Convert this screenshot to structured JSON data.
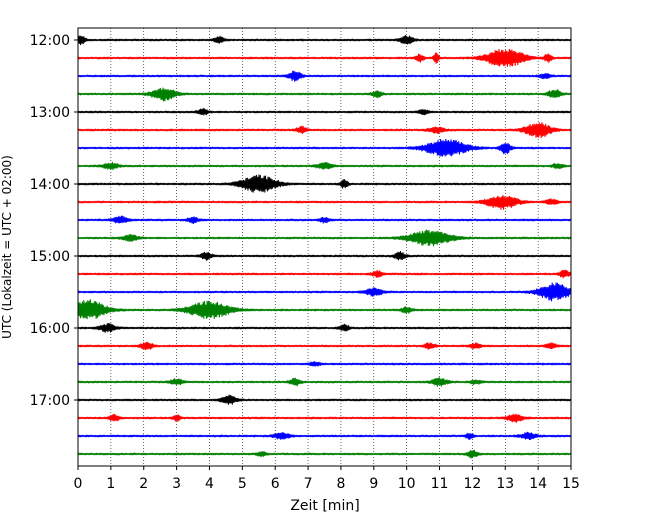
{
  "chart_data": {
    "type": "line",
    "title": "",
    "xlabel": "Zeit  [min]",
    "ylabel": "UTC (Lokalzeit = UTC + 02:00)",
    "xlim": [
      0,
      15
    ],
    "x_ticks": [
      "0",
      "1",
      "2",
      "3",
      "4",
      "5",
      "6",
      "7",
      "8",
      "9",
      "10",
      "11",
      "12",
      "13",
      "14",
      "15"
    ],
    "y_tick_labels": [
      "12:00",
      "13:00",
      "14:00",
      "15:00",
      "16:00",
      "17:00"
    ],
    "grid": "vertical dotted at each minute",
    "trace_count": 24,
    "traces_per_hour": 4,
    "trace_start_utc": "12:00",
    "trace_interval_min": 15,
    "colors_cycle": [
      "#000000",
      "#ff0000",
      "#0000ff",
      "#008000"
    ],
    "events": [
      {
        "trace": 0,
        "t": 0.1,
        "amp": 1.0,
        "w": 0.15
      },
      {
        "trace": 0,
        "t": 4.3,
        "amp": 0.7,
        "w": 0.2
      },
      {
        "trace": 0,
        "t": 10.0,
        "amp": 1.0,
        "w": 0.25
      },
      {
        "trace": 1,
        "t": 10.4,
        "amp": 0.8,
        "w": 0.15
      },
      {
        "trace": 1,
        "t": 10.9,
        "amp": 1.2,
        "w": 0.1
      },
      {
        "trace": 1,
        "t": 13.0,
        "amp": 2.3,
        "w": 0.7
      },
      {
        "trace": 1,
        "t": 14.3,
        "amp": 0.9,
        "w": 0.15
      },
      {
        "trace": 2,
        "t": 6.6,
        "amp": 1.1,
        "w": 0.25
      },
      {
        "trace": 2,
        "t": 14.2,
        "amp": 0.6,
        "w": 0.2
      },
      {
        "trace": 3,
        "t": 2.6,
        "amp": 1.5,
        "w": 0.45
      },
      {
        "trace": 3,
        "t": 9.1,
        "amp": 0.7,
        "w": 0.2
      },
      {
        "trace": 3,
        "t": 14.5,
        "amp": 1.0,
        "w": 0.25
      },
      {
        "trace": 4,
        "t": 3.8,
        "amp": 0.7,
        "w": 0.2
      },
      {
        "trace": 4,
        "t": 10.5,
        "amp": 0.6,
        "w": 0.2
      },
      {
        "trace": 5,
        "t": 6.8,
        "amp": 0.8,
        "w": 0.2
      },
      {
        "trace": 5,
        "t": 10.9,
        "amp": 0.7,
        "w": 0.3
      },
      {
        "trace": 5,
        "t": 14.0,
        "amp": 1.8,
        "w": 0.5
      },
      {
        "trace": 6,
        "t": 11.2,
        "amp": 2.0,
        "w": 0.8
      },
      {
        "trace": 6,
        "t": 13.0,
        "amp": 1.4,
        "w": 0.2
      },
      {
        "trace": 7,
        "t": 1.0,
        "amp": 0.7,
        "w": 0.3
      },
      {
        "trace": 7,
        "t": 7.5,
        "amp": 0.7,
        "w": 0.3
      },
      {
        "trace": 7,
        "t": 14.6,
        "amp": 0.6,
        "w": 0.2
      },
      {
        "trace": 8,
        "t": 5.5,
        "amp": 2.0,
        "w": 0.7
      },
      {
        "trace": 8,
        "t": 8.1,
        "amp": 0.9,
        "w": 0.15
      },
      {
        "trace": 9,
        "t": 12.9,
        "amp": 1.6,
        "w": 0.6
      },
      {
        "trace": 9,
        "t": 14.4,
        "amp": 0.6,
        "w": 0.25
      },
      {
        "trace": 10,
        "t": 1.3,
        "amp": 0.8,
        "w": 0.3
      },
      {
        "trace": 10,
        "t": 3.5,
        "amp": 0.7,
        "w": 0.2
      },
      {
        "trace": 10,
        "t": 7.5,
        "amp": 0.6,
        "w": 0.2
      },
      {
        "trace": 11,
        "t": 1.6,
        "amp": 0.7,
        "w": 0.3
      },
      {
        "trace": 11,
        "t": 10.7,
        "amp": 1.8,
        "w": 0.8
      },
      {
        "trace": 12,
        "t": 3.9,
        "amp": 0.9,
        "w": 0.2
      },
      {
        "trace": 12,
        "t": 9.8,
        "amp": 0.9,
        "w": 0.2
      },
      {
        "trace": 13,
        "t": 9.1,
        "amp": 0.7,
        "w": 0.2
      },
      {
        "trace": 13,
        "t": 14.8,
        "amp": 0.8,
        "w": 0.2
      },
      {
        "trace": 14,
        "t": 9.0,
        "amp": 0.8,
        "w": 0.35
      },
      {
        "trace": 14,
        "t": 14.5,
        "amp": 2.0,
        "w": 0.6
      },
      {
        "trace": 15,
        "t": 0.3,
        "amp": 2.3,
        "w": 0.7
      },
      {
        "trace": 15,
        "t": 4.0,
        "amp": 2.0,
        "w": 0.8
      },
      {
        "trace": 15,
        "t": 10.0,
        "amp": 0.7,
        "w": 0.2
      },
      {
        "trace": 16,
        "t": 0.9,
        "amp": 0.9,
        "w": 0.3
      },
      {
        "trace": 16,
        "t": 8.1,
        "amp": 0.7,
        "w": 0.2
      },
      {
        "trace": 17,
        "t": 2.1,
        "amp": 0.8,
        "w": 0.25
      },
      {
        "trace": 17,
        "t": 10.7,
        "amp": 0.7,
        "w": 0.2
      },
      {
        "trace": 17,
        "t": 12.1,
        "amp": 0.6,
        "w": 0.2
      },
      {
        "trace": 17,
        "t": 14.4,
        "amp": 0.6,
        "w": 0.2
      },
      {
        "trace": 18,
        "t": 7.2,
        "amp": 0.5,
        "w": 0.2
      },
      {
        "trace": 19,
        "t": 3.0,
        "amp": 0.7,
        "w": 0.25
      },
      {
        "trace": 19,
        "t": 6.6,
        "amp": 0.8,
        "w": 0.2
      },
      {
        "trace": 19,
        "t": 11.0,
        "amp": 0.9,
        "w": 0.3
      },
      {
        "trace": 19,
        "t": 12.1,
        "amp": 0.5,
        "w": 0.2
      },
      {
        "trace": 20,
        "t": 4.6,
        "amp": 1.0,
        "w": 0.3
      },
      {
        "trace": 21,
        "t": 1.1,
        "amp": 0.7,
        "w": 0.2
      },
      {
        "trace": 21,
        "t": 3.0,
        "amp": 0.7,
        "w": 0.15
      },
      {
        "trace": 21,
        "t": 13.3,
        "amp": 0.9,
        "w": 0.3
      },
      {
        "trace": 22,
        "t": 6.2,
        "amp": 0.8,
        "w": 0.3
      },
      {
        "trace": 22,
        "t": 11.9,
        "amp": 0.7,
        "w": 0.15
      },
      {
        "trace": 22,
        "t": 13.7,
        "amp": 0.7,
        "w": 0.3
      },
      {
        "trace": 23,
        "t": 5.6,
        "amp": 0.5,
        "w": 0.2
      },
      {
        "trace": 23,
        "t": 12.0,
        "amp": 0.8,
        "w": 0.2
      }
    ]
  }
}
